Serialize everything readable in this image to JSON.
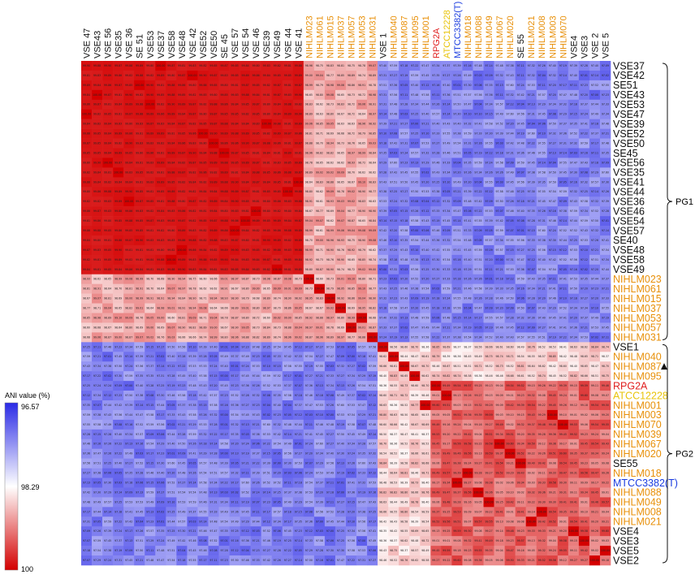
{
  "chart_data": {
    "type": "heatmap",
    "legend": {
      "title": "ANI value (%)",
      "ticks": [
        "96.57",
        "98.29",
        "100"
      ],
      "min": 96.57,
      "mid": 98.29,
      "max": 100,
      "colors": {
        "low": "#2a2ae6",
        "mid": "#ffffff",
        "high": "#d40000"
      }
    },
    "columns": [
      "VSE 47",
      "VSE43",
      "VSE 56",
      "VSE35",
      "VSE 36",
      "SE 51",
      "VSE53",
      "VSE37",
      "VSE58",
      "VSE48",
      "VSE 42",
      "VSE52",
      "VSE50",
      "SE 45",
      "VSE 57",
      "VSE 54",
      "VSE 46",
      "VSE39",
      "VSE49",
      "VSE 44",
      "VSE 41",
      "NIHLM023",
      "NIHLM061",
      "NIHLM015",
      "NIHLM037",
      "NIHLM057",
      "NIHLM053",
      "NIHLM031",
      "VSE 1",
      "NIHLM040",
      "NIHLM087",
      "NIHLM095",
      "NIHLM001",
      "RPG2A",
      "ATCC12228",
      "MTCC3382(T)",
      "NIHLM018",
      "NIHLM088",
      "NIHLM049",
      "NIHLM067",
      "NIHLM020",
      "SE 55",
      "NIHLM021",
      "NIHLM008",
      "NIHLM003",
      "NIHLM070",
      "VSE4",
      "VSE3",
      "VSE 2",
      "VSE 5"
    ],
    "column_colors": [
      "#111111",
      "#111111",
      "#111111",
      "#111111",
      "#111111",
      "#111111",
      "#111111",
      "#111111",
      "#111111",
      "#111111",
      "#111111",
      "#111111",
      "#111111",
      "#111111",
      "#111111",
      "#111111",
      "#111111",
      "#111111",
      "#111111",
      "#111111",
      "#111111",
      "#e8900a",
      "#e8900a",
      "#e8900a",
      "#e8900a",
      "#e8900a",
      "#e8900a",
      "#e8900a",
      "#111111",
      "#e8900a",
      "#e8900a",
      "#e8900a",
      "#e8900a",
      "#e02020",
      "#e8c40a",
      "#1a3ce0",
      "#e8900a",
      "#e8900a",
      "#e8900a",
      "#e8900a",
      "#e8900a",
      "#111111",
      "#e8900a",
      "#e8900a",
      "#e8900a",
      "#e8900a",
      "#111111",
      "#111111",
      "#111111",
      "#111111"
    ],
    "rows": [
      "VSE37",
      "VSE42",
      "SE51",
      "VSE43",
      "VSE53",
      "VSE47",
      "VSE39",
      "VSE52",
      "VSE50",
      "SE45",
      "VSE56",
      "VSE35",
      "VSE41",
      "VSE44",
      "VSE36",
      "VSE46",
      "VSE54",
      "VSE57",
      "SE40",
      "VSE48",
      "VSE58",
      "VSE49",
      "NIHLM023",
      "NIHLM061",
      "NIHLM015",
      "NIHLM037",
      "NIHLM053",
      "NIHLM057",
      "NIHLM031",
      "VSE1",
      "NIHLM040",
      "NIHLM087",
      "NIHLM095",
      "RPG2A",
      "ATCC12228",
      "NIHLM001",
      "NIHLM003",
      "NIHLM070",
      "NIHLM039",
      "NIHLM067",
      "NIHLM020",
      "SE55",
      "NIHLM018",
      "MTCC3382(T)",
      "NIHLM088",
      "NIHLM049",
      "NIHLM008",
      "NIHLM021",
      "VSE4",
      "VSE3",
      "VSE5",
      "VSE2"
    ],
    "row_colors": [
      "#111111",
      "#111111",
      "#111111",
      "#111111",
      "#111111",
      "#111111",
      "#111111",
      "#111111",
      "#111111",
      "#111111",
      "#111111",
      "#111111",
      "#111111",
      "#111111",
      "#111111",
      "#111111",
      "#111111",
      "#111111",
      "#111111",
      "#111111",
      "#111111",
      "#111111",
      "#e8900a",
      "#e8900a",
      "#e8900a",
      "#e8900a",
      "#e8900a",
      "#e8900a",
      "#e8900a",
      "#111111",
      "#e8900a",
      "#e8900a",
      "#e8900a",
      "#e02020",
      "#e8c40a",
      "#e8900a",
      "#e8900a",
      "#e8900a",
      "#e8900a",
      "#e8900a",
      "#e8900a",
      "#111111",
      "#e8900a",
      "#1a3ce0",
      "#e8900a",
      "#e8900a",
      "#e8900a",
      "#e8900a",
      "#111111",
      "#111111",
      "#111111",
      "#111111"
    ],
    "blocks": {
      "pg1_core_rows": [
        0,
        21
      ],
      "pg1_nihlm_rows": [
        22,
        28
      ],
      "pg1_cols": [
        0,
        27
      ],
      "vse1_col": 28,
      "pg2_cols": [
        29,
        49
      ],
      "pg2_rows": [
        29,
        51
      ],
      "pg1_within_ani": 99.9,
      "pg1_nihlm_ani": 98.6,
      "between_ani": 97.0,
      "pg2_within_ani": 98.6,
      "pg2_sub_ani": 99.3
    },
    "groups": [
      {
        "label": "PG1",
        "rows": [
          0,
          28
        ]
      },
      {
        "label": "PG2",
        "rows": [
          29,
          51
        ]
      }
    ],
    "marker_row": "NIHLM087"
  }
}
